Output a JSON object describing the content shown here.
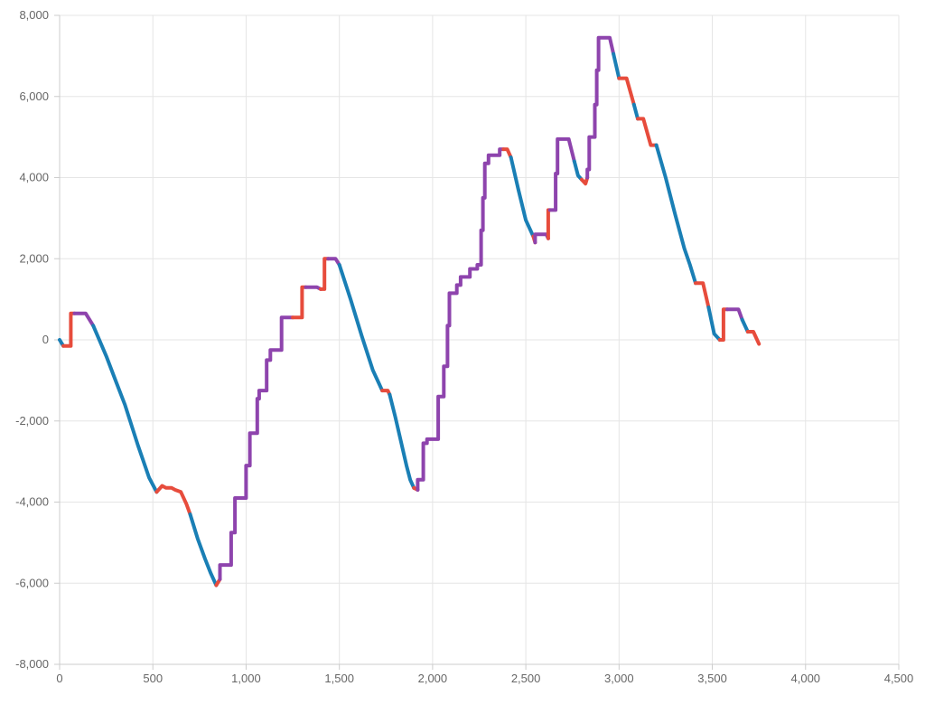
{
  "chart_data": {
    "type": "line",
    "title": "",
    "xlabel": "",
    "ylabel": "",
    "xlim": [
      0,
      4500
    ],
    "ylim": [
      -8000,
      8000
    ],
    "grid": true,
    "legend": "none",
    "x_ticks": [
      "0",
      "500",
      "1,000",
      "1,500",
      "2,000",
      "2,500",
      "3,000",
      "3,500",
      "4,000",
      "4,500"
    ],
    "y_ticks": [
      "8,000",
      "6,000",
      "4,000",
      "2,000",
      "0",
      "-2,000",
      "-4,000",
      "-6,000",
      "-8,000"
    ],
    "segment_colors": {
      "falling": "#1a7fb5",
      "step_up": "#8e44ad",
      "other": "#e74c3c"
    },
    "series": [
      {
        "segments": [
          {
            "kind": "falling",
            "points": [
              [
                0,
                0
              ],
              [
                20,
                -150
              ]
            ]
          },
          {
            "kind": "other",
            "points": [
              [
                20,
                -150
              ],
              [
                60,
                -150
              ],
              [
                60,
                650
              ],
              [
                80,
                650
              ]
            ]
          },
          {
            "kind": "step_up",
            "points": [
              [
                80,
                650
              ],
              [
                140,
                650
              ],
              [
                180,
                350
              ]
            ]
          },
          {
            "kind": "falling",
            "points": [
              [
                180,
                350
              ],
              [
                250,
                -400
              ],
              [
                300,
                -1000
              ],
              [
                350,
                -1600
              ],
              [
                420,
                -2600
              ],
              [
                450,
                -3000
              ],
              [
                480,
                -3400
              ],
              [
                520,
                -3750
              ]
            ]
          },
          {
            "kind": "other",
            "points": [
              [
                520,
                -3750
              ],
              [
                550,
                -3600
              ],
              [
                570,
                -3650
              ],
              [
                600,
                -3650
              ],
              [
                620,
                -3700
              ],
              [
                650,
                -3750
              ],
              [
                680,
                -4050
              ],
              [
                700,
                -4300
              ]
            ]
          },
          {
            "kind": "falling",
            "points": [
              [
                700,
                -4300
              ],
              [
                740,
                -4900
              ],
              [
                780,
                -5400
              ],
              [
                810,
                -5750
              ],
              [
                840,
                -6050
              ]
            ]
          },
          {
            "kind": "other",
            "points": [
              [
                840,
                -6050
              ],
              [
                860,
                -5900
              ]
            ]
          },
          {
            "kind": "step_up",
            "points": [
              [
                860,
                -5900
              ],
              [
                860,
                -5550
              ],
              [
                920,
                -5550
              ],
              [
                920,
                -4750
              ],
              [
                940,
                -4750
              ],
              [
                940,
                -3900
              ],
              [
                1000,
                -3900
              ],
              [
                1000,
                -3100
              ],
              [
                1020,
                -3100
              ],
              [
                1020,
                -2300
              ],
              [
                1060,
                -2300
              ],
              [
                1060,
                -1450
              ],
              [
                1070,
                -1450
              ],
              [
                1070,
                -1250
              ],
              [
                1110,
                -1250
              ],
              [
                1110,
                -500
              ],
              [
                1130,
                -500
              ],
              [
                1130,
                -250
              ],
              [
                1190,
                -250
              ],
              [
                1190,
                550
              ],
              [
                1250,
                550
              ]
            ]
          },
          {
            "kind": "other",
            "points": [
              [
                1250,
                550
              ],
              [
                1300,
                550
              ],
              [
                1300,
                1300
              ],
              [
                1320,
                1300
              ]
            ]
          },
          {
            "kind": "step_up",
            "points": [
              [
                1320,
                1300
              ],
              [
                1380,
                1300
              ],
              [
                1400,
                1250
              ]
            ]
          },
          {
            "kind": "other",
            "points": [
              [
                1400,
                1250
              ],
              [
                1420,
                1250
              ],
              [
                1420,
                2000
              ],
              [
                1440,
                2000
              ]
            ]
          },
          {
            "kind": "step_up",
            "points": [
              [
                1440,
                2000
              ],
              [
                1480,
                2000
              ],
              [
                1500,
                1850
              ]
            ]
          },
          {
            "kind": "falling",
            "points": [
              [
                1500,
                1850
              ],
              [
                1560,
                1000
              ],
              [
                1620,
                100
              ],
              [
                1680,
                -750
              ],
              [
                1710,
                -1050
              ],
              [
                1730,
                -1250
              ]
            ]
          },
          {
            "kind": "other",
            "points": [
              [
                1730,
                -1250
              ],
              [
                1760,
                -1250
              ],
              [
                1770,
                -1350
              ]
            ]
          },
          {
            "kind": "falling",
            "points": [
              [
                1770,
                -1350
              ],
              [
                1800,
                -1900
              ],
              [
                1830,
                -2500
              ],
              [
                1860,
                -3100
              ],
              [
                1880,
                -3450
              ],
              [
                1900,
                -3650
              ]
            ]
          },
          {
            "kind": "other",
            "points": [
              [
                1900,
                -3650
              ],
              [
                1920,
                -3700
              ]
            ]
          },
          {
            "kind": "step_up",
            "points": [
              [
                1920,
                -3700
              ],
              [
                1920,
                -3450
              ],
              [
                1950,
                -3450
              ],
              [
                1950,
                -2550
              ],
              [
                1970,
                -2550
              ],
              [
                1970,
                -2450
              ],
              [
                2030,
                -2450
              ],
              [
                2030,
                -1400
              ],
              [
                2060,
                -1400
              ],
              [
                2060,
                -650
              ],
              [
                2080,
                -650
              ],
              [
                2080,
                350
              ],
              [
                2090,
                350
              ],
              [
                2090,
                1150
              ],
              [
                2130,
                1150
              ],
              [
                2130,
                1350
              ],
              [
                2150,
                1350
              ],
              [
                2150,
                1550
              ],
              [
                2200,
                1550
              ],
              [
                2200,
                1750
              ],
              [
                2240,
                1750
              ],
              [
                2240,
                1850
              ],
              [
                2260,
                1850
              ],
              [
                2260,
                2700
              ],
              [
                2270,
                2700
              ],
              [
                2270,
                3500
              ],
              [
                2280,
                3500
              ],
              [
                2280,
                4350
              ],
              [
                2300,
                4350
              ],
              [
                2300,
                4550
              ],
              [
                2360,
                4550
              ],
              [
                2360,
                4700
              ],
              [
                2380,
                4700
              ]
            ]
          },
          {
            "kind": "other",
            "points": [
              [
                2380,
                4700
              ],
              [
                2400,
                4700
              ],
              [
                2420,
                4500
              ]
            ]
          },
          {
            "kind": "falling",
            "points": [
              [
                2420,
                4500
              ],
              [
                2460,
                3700
              ],
              [
                2500,
                2950
              ],
              [
                2540,
                2550
              ]
            ]
          },
          {
            "kind": "other",
            "points": [
              [
                2540,
                2550
              ],
              [
                2550,
                2400
              ]
            ]
          },
          {
            "kind": "step_up",
            "points": [
              [
                2550,
                2400
              ],
              [
                2550,
                2600
              ],
              [
                2610,
                2600
              ],
              [
                2620,
                2500
              ]
            ]
          },
          {
            "kind": "other",
            "points": [
              [
                2620,
                2500
              ],
              [
                2620,
                3200
              ],
              [
                2630,
                3200
              ]
            ]
          },
          {
            "kind": "step_up",
            "points": [
              [
                2630,
                3200
              ],
              [
                2660,
                3200
              ],
              [
                2660,
                4100
              ],
              [
                2670,
                4100
              ],
              [
                2670,
                4950
              ],
              [
                2730,
                4950
              ],
              [
                2760,
                4400
              ]
            ]
          },
          {
            "kind": "falling",
            "points": [
              [
                2760,
                4400
              ],
              [
                2780,
                4050
              ],
              [
                2800,
                3950
              ]
            ]
          },
          {
            "kind": "other",
            "points": [
              [
                2800,
                3950
              ],
              [
                2820,
                3850
              ],
              [
                2830,
                4000
              ]
            ]
          },
          {
            "kind": "step_up",
            "points": [
              [
                2830,
                4000
              ],
              [
                2830,
                4200
              ],
              [
                2840,
                4200
              ],
              [
                2840,
                5000
              ],
              [
                2870,
                5000
              ],
              [
                2870,
                5800
              ],
              [
                2880,
                5800
              ],
              [
                2880,
                6650
              ],
              [
                2890,
                6650
              ],
              [
                2890,
                7450
              ],
              [
                2950,
                7450
              ],
              [
                2970,
                7050
              ]
            ]
          },
          {
            "kind": "falling",
            "points": [
              [
                2970,
                7050
              ],
              [
                3000,
                6450
              ]
            ]
          },
          {
            "kind": "other",
            "points": [
              [
                3000,
                6450
              ],
              [
                3040,
                6450
              ],
              [
                3080,
                5800
              ]
            ]
          },
          {
            "kind": "falling",
            "points": [
              [
                3080,
                5800
              ],
              [
                3100,
                5450
              ]
            ]
          },
          {
            "kind": "other",
            "points": [
              [
                3100,
                5450
              ],
              [
                3130,
                5450
              ],
              [
                3170,
                4800
              ],
              [
                3200,
                4800
              ]
            ]
          },
          {
            "kind": "falling",
            "points": [
              [
                3200,
                4800
              ],
              [
                3250,
                4000
              ],
              [
                3300,
                3100
              ],
              [
                3350,
                2250
              ],
              [
                3380,
                1850
              ],
              [
                3410,
                1400
              ]
            ]
          },
          {
            "kind": "other",
            "points": [
              [
                3410,
                1400
              ],
              [
                3450,
                1400
              ],
              [
                3480,
                800
              ]
            ]
          },
          {
            "kind": "falling",
            "points": [
              [
                3480,
                800
              ],
              [
                3510,
                150
              ],
              [
                3540,
                0
              ]
            ]
          },
          {
            "kind": "other",
            "points": [
              [
                3540,
                0
              ],
              [
                3560,
                0
              ],
              [
                3560,
                750
              ],
              [
                3580,
                750
              ]
            ]
          },
          {
            "kind": "step_up",
            "points": [
              [
                3580,
                750
              ],
              [
                3640,
                750
              ],
              [
                3660,
                500
              ]
            ]
          },
          {
            "kind": "falling",
            "points": [
              [
                3660,
                500
              ],
              [
                3690,
                200
              ]
            ]
          },
          {
            "kind": "other",
            "points": [
              [
                3690,
                200
              ],
              [
                3720,
                200
              ],
              [
                3750,
                -100
              ]
            ]
          }
        ]
      }
    ]
  }
}
